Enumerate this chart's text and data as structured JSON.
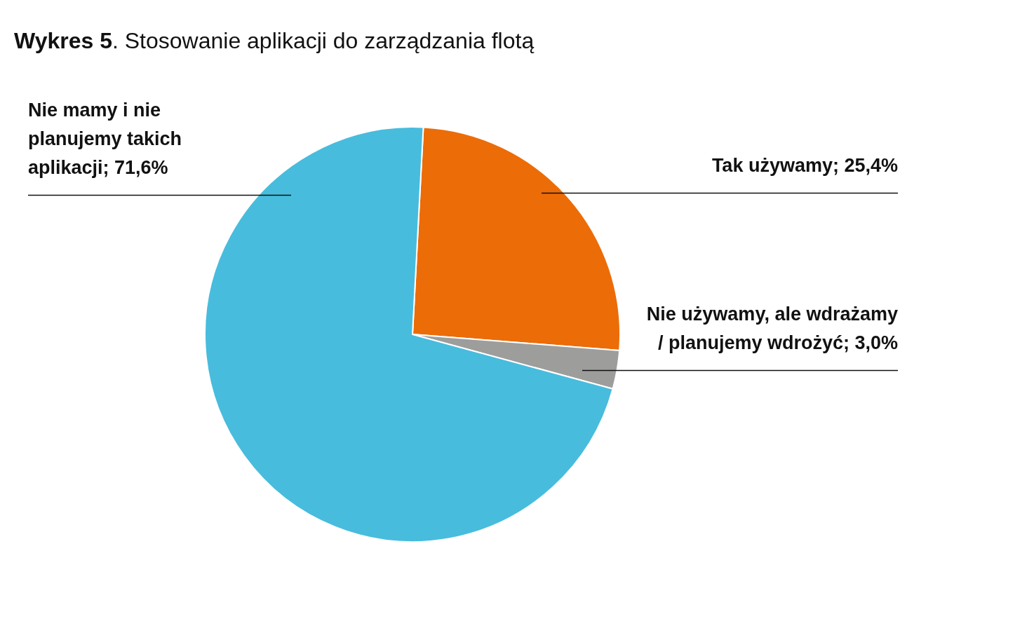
{
  "chart_data": {
    "type": "pie",
    "title": "Wykres 5. Stosowanie aplikacji do zarządzania flotą",
    "categories": [
      "Tak używamy",
      "Nie używamy, ale wdrażamy / planujemy wdrożyć",
      "Nie mamy i nie planujemy takich aplikacji"
    ],
    "values": [
      25.4,
      3.0,
      71.6
    ],
    "value_labels": [
      "25,4%",
      "3,0%",
      "71,6%"
    ],
    "colors": [
      "#ec6c08",
      "#9d9d9c",
      "#48bcdd"
    ],
    "legend": false
  }
}
